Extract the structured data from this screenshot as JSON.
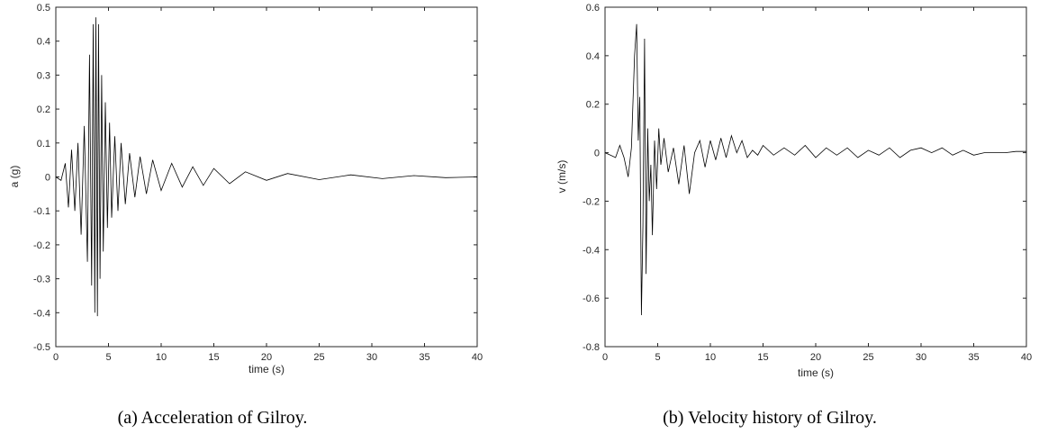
{
  "chart_data": [
    {
      "type": "line",
      "caption": "(a) Acceleration of Gilroy.",
      "xlabel": "time (s)",
      "ylabel": "a (g)",
      "xlim": [
        0,
        40
      ],
      "ylim": [
        -0.5,
        0.5
      ],
      "xticks": [
        0,
        5,
        10,
        15,
        20,
        25,
        30,
        35,
        40
      ],
      "yticks": [
        -0.5,
        -0.4,
        -0.3,
        -0.2,
        -0.1,
        0,
        0.1,
        0.2,
        0.3,
        0.4,
        0.5
      ],
      "grid": false,
      "line_color": "#000000",
      "series": [
        {
          "x": [
            0,
            0.5,
            0.9,
            1.2,
            1.5,
            1.8,
            2.1,
            2.4,
            2.7,
            3.0,
            3.2,
            3.4,
            3.55,
            3.7,
            3.8,
            3.95,
            4.05,
            4.2,
            4.35,
            4.5,
            4.7,
            4.9,
            5.1,
            5.3,
            5.6,
            5.9,
            6.2,
            6.6,
            7.0,
            7.5,
            8.0,
            8.6,
            9.2,
            10,
            11,
            12,
            13,
            14,
            15,
            16.5,
            18,
            20,
            22,
            25,
            28,
            31,
            34,
            37,
            40
          ],
          "y": [
            0,
            -0.01,
            0.04,
            -0.09,
            0.08,
            -0.1,
            0.1,
            -0.17,
            0.15,
            -0.25,
            0.36,
            -0.32,
            0.45,
            -0.4,
            0.47,
            -0.41,
            0.45,
            -0.3,
            0.3,
            -0.22,
            0.22,
            -0.15,
            0.16,
            -0.12,
            0.12,
            -0.1,
            0.1,
            -0.08,
            0.07,
            -0.06,
            0.06,
            -0.05,
            0.05,
            -0.04,
            0.04,
            -0.03,
            0.03,
            -0.025,
            0.025,
            -0.02,
            0.015,
            -0.01,
            0.01,
            -0.008,
            0.006,
            -0.005,
            0.004,
            -0.002,
            0
          ]
        }
      ]
    },
    {
      "type": "line",
      "caption": "(b) Velocity history of Gilroy.",
      "xlabel": "time (s)",
      "ylabel": "v (m/s)",
      "xlim": [
        0,
        40
      ],
      "ylim": [
        -0.8,
        0.6
      ],
      "xticks": [
        0,
        5,
        10,
        15,
        20,
        25,
        30,
        35,
        40
      ],
      "yticks": [
        -0.8,
        -0.6,
        -0.4,
        -0.2,
        0,
        0.2,
        0.4,
        0.6
      ],
      "grid": false,
      "line_color": "#000000",
      "series": [
        {
          "x": [
            0,
            0.5,
            1.0,
            1.4,
            1.8,
            2.2,
            2.5,
            2.8,
            3.0,
            3.15,
            3.3,
            3.45,
            3.6,
            3.75,
            3.9,
            4.05,
            4.2,
            4.35,
            4.5,
            4.7,
            4.9,
            5.1,
            5.3,
            5.6,
            6.0,
            6.5,
            7.0,
            7.5,
            8.0,
            8.5,
            9.0,
            9.5,
            10.0,
            10.5,
            11.0,
            11.5,
            12.0,
            12.5,
            13.0,
            13.5,
            14.0,
            14.5,
            15,
            16,
            17,
            18,
            19,
            20,
            21,
            22,
            23,
            24,
            25,
            26,
            27,
            28,
            29,
            30,
            31,
            32,
            33,
            34,
            35,
            36,
            37,
            38,
            39,
            40
          ],
          "y": [
            0,
            -0.01,
            -0.02,
            0.03,
            -0.02,
            -0.1,
            0.02,
            0.4,
            0.53,
            0.05,
            0.23,
            -0.67,
            -0.3,
            0.47,
            -0.5,
            0.1,
            -0.2,
            -0.05,
            -0.34,
            0.05,
            -0.15,
            0.1,
            -0.05,
            0.06,
            -0.08,
            0.02,
            -0.13,
            0.03,
            -0.17,
            0.0,
            0.05,
            -0.06,
            0.05,
            -0.03,
            0.06,
            -0.02,
            0.07,
            0.0,
            0.05,
            -0.02,
            0.01,
            -0.01,
            0.03,
            -0.01,
            0.02,
            -0.01,
            0.03,
            -0.02,
            0.02,
            -0.01,
            0.02,
            -0.02,
            0.01,
            -0.01,
            0.02,
            -0.02,
            0.01,
            0.02,
            0.0,
            0.02,
            -0.01,
            0.01,
            -0.01,
            0.0,
            0.0,
            0.0,
            0.005,
            0.005
          ]
        }
      ]
    }
  ]
}
